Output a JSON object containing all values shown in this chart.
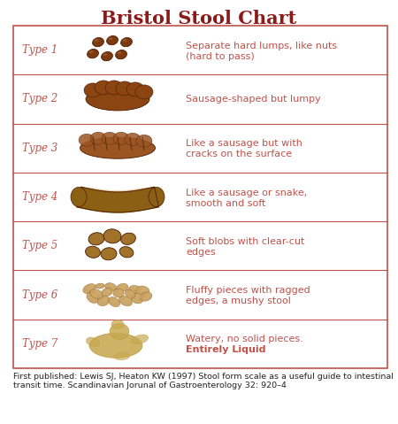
{
  "title": "Bristol Stool Chart",
  "title_color": "#8B1A1A",
  "title_fontsize": 15,
  "title_fontweight": "bold",
  "background_color": "#ffffff",
  "border_color": "#c0524a",
  "row_line_color": "#c0524a",
  "type_label_color": "#c0524a",
  "description_color": "#c0524a",
  "footnote_line1": "First published: Lewis SJ, Heaton KW (1997) Stool form scale as a useful guide to intestinal",
  "footnote_line2": "transit time. Scandinavian Jorunal of Gastroenterology 32: 920–4",
  "footnote_color": "#222222",
  "footnote_fontsize": 6.8,
  "rows": [
    {
      "type": "Type 1",
      "desc1": "Separate hard lumps, like nuts",
      "desc2": "(hard to pass)",
      "bold2": false,
      "shape": "type1"
    },
    {
      "type": "Type 2",
      "desc1": "Sausage-shaped but lumpy",
      "desc2": "",
      "bold2": false,
      "shape": "type2"
    },
    {
      "type": "Type 3",
      "desc1": "Like a sausage but with",
      "desc2": "cracks on the surface",
      "bold2": false,
      "shape": "type3"
    },
    {
      "type": "Type 4",
      "desc1": "Like a sausage or snake,",
      "desc2": "smooth and soft",
      "bold2": false,
      "shape": "type4"
    },
    {
      "type": "Type 5",
      "desc1": "Soft blobs with clear-cut",
      "desc2": "edges",
      "bold2": false,
      "shape": "type5"
    },
    {
      "type": "Type 6",
      "desc1": "Fluffy pieces with ragged",
      "desc2": "edges, a mushy stool",
      "bold2": false,
      "shape": "type6"
    },
    {
      "type": "Type 7",
      "desc1": "Watery, no solid pieces.",
      "desc2": "Entirely Liquid",
      "bold2": true,
      "shape": "type7"
    }
  ]
}
